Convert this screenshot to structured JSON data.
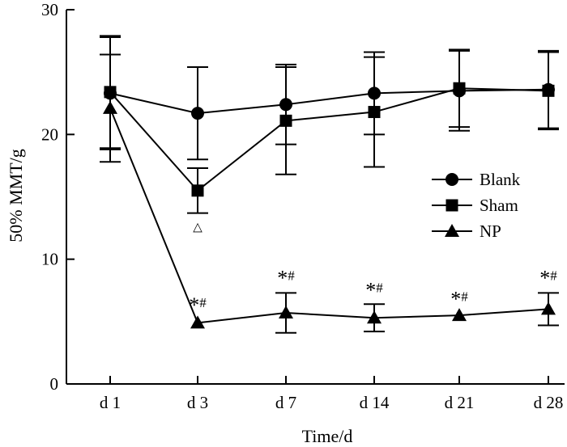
{
  "chart_data": {
    "type": "line",
    "title": "",
    "xlabel": "Time/d",
    "ylabel": "50% MMT/g",
    "categories": [
      "d 1",
      "d 3",
      "d 7",
      "d 14",
      "d 21",
      "d 28"
    ],
    "ylim": [
      0,
      30
    ],
    "yticks": [
      0,
      10,
      20,
      30
    ],
    "grid": false,
    "legend_position": "right-center",
    "series": [
      {
        "name": "Blank",
        "marker": "circle",
        "values": [
          23.3,
          21.7,
          22.4,
          23.3,
          23.5,
          23.6
        ],
        "errors": [
          4.5,
          3.7,
          3.2,
          3.3,
          3.2,
          3.1
        ]
      },
      {
        "name": "Sham",
        "marker": "square",
        "values": [
          23.4,
          15.5,
          21.1,
          21.8,
          23.7,
          23.5
        ],
        "errors": [
          4.5,
          1.8,
          4.3,
          4.4,
          3.1,
          3.1
        ]
      },
      {
        "name": "NP",
        "marker": "triangle",
        "values": [
          22.1,
          4.9,
          5.7,
          5.3,
          5.5,
          6.0
        ],
        "errors": [
          4.3,
          0.0,
          1.6,
          1.1,
          0.0,
          1.3
        ]
      }
    ],
    "annotations": [
      {
        "category": "d 3",
        "value": 12.6,
        "text": "△"
      },
      {
        "category": "d 3",
        "value": 6.4,
        "text": "*#"
      },
      {
        "category": "d 7",
        "value": 8.6,
        "text": "*#"
      },
      {
        "category": "d 14",
        "value": 7.6,
        "text": "*#"
      },
      {
        "category": "d 21",
        "value": 6.9,
        "text": "*#"
      },
      {
        "category": "d 28",
        "value": 8.6,
        "text": "*#"
      }
    ]
  }
}
